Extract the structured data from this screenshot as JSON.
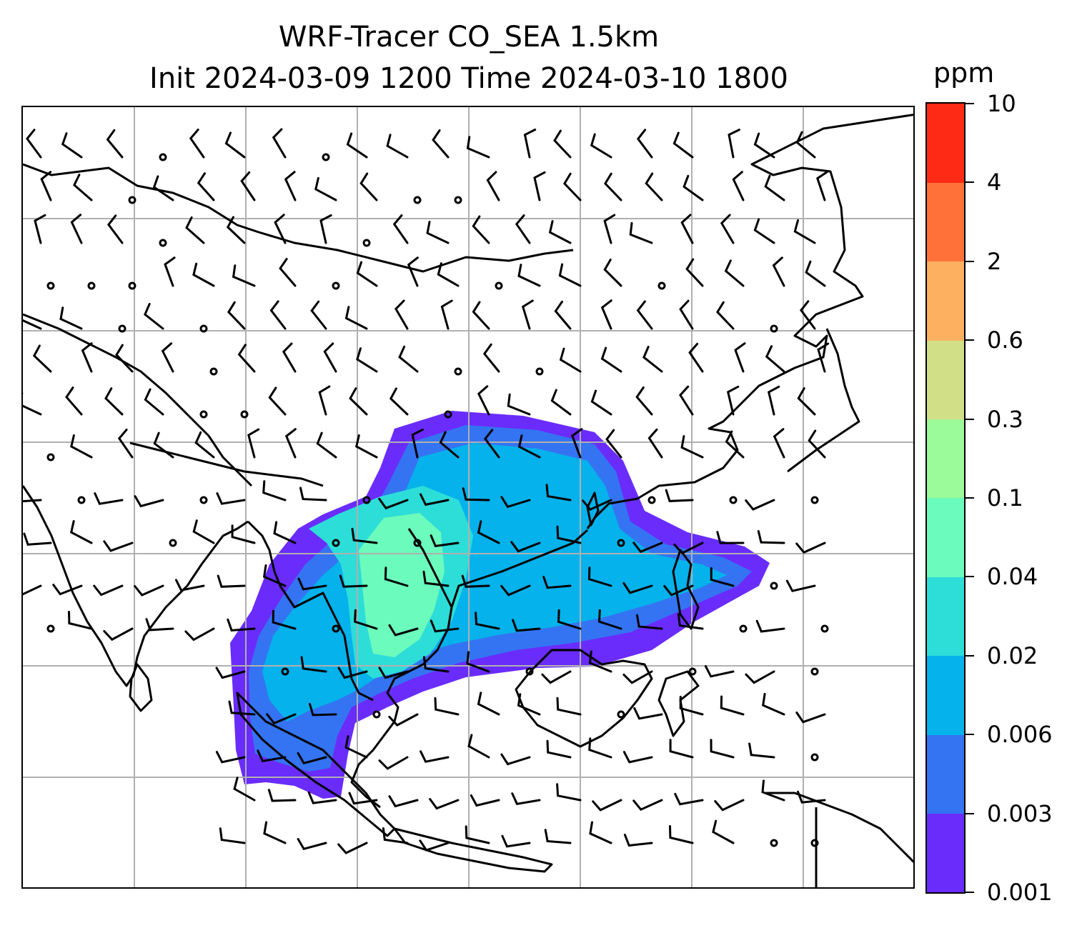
{
  "title": {
    "line1": "WRF-Tracer CO_SEA 1.5km",
    "line2": "Init 2024-03-09 1200 Time 2024-03-10 1800"
  },
  "colorbar": {
    "unit": "ppm",
    "levels": [
      "0.001",
      "0.003",
      "0.006",
      "0.02",
      "0.04",
      "0.1",
      "0.3",
      "0.6",
      "2",
      "4",
      "10"
    ],
    "colors": [
      "#6a2cfb",
      "#3474f2",
      "#05b2eb",
      "#2dddd8",
      "#6bfbbc",
      "#9bfa99",
      "#d1e087",
      "#fcb060",
      "#ff7138",
      "#ff2a16"
    ]
  },
  "map": {
    "field": "CO_SEA tracer concentration with wind barbs",
    "gridlines": true
  }
}
